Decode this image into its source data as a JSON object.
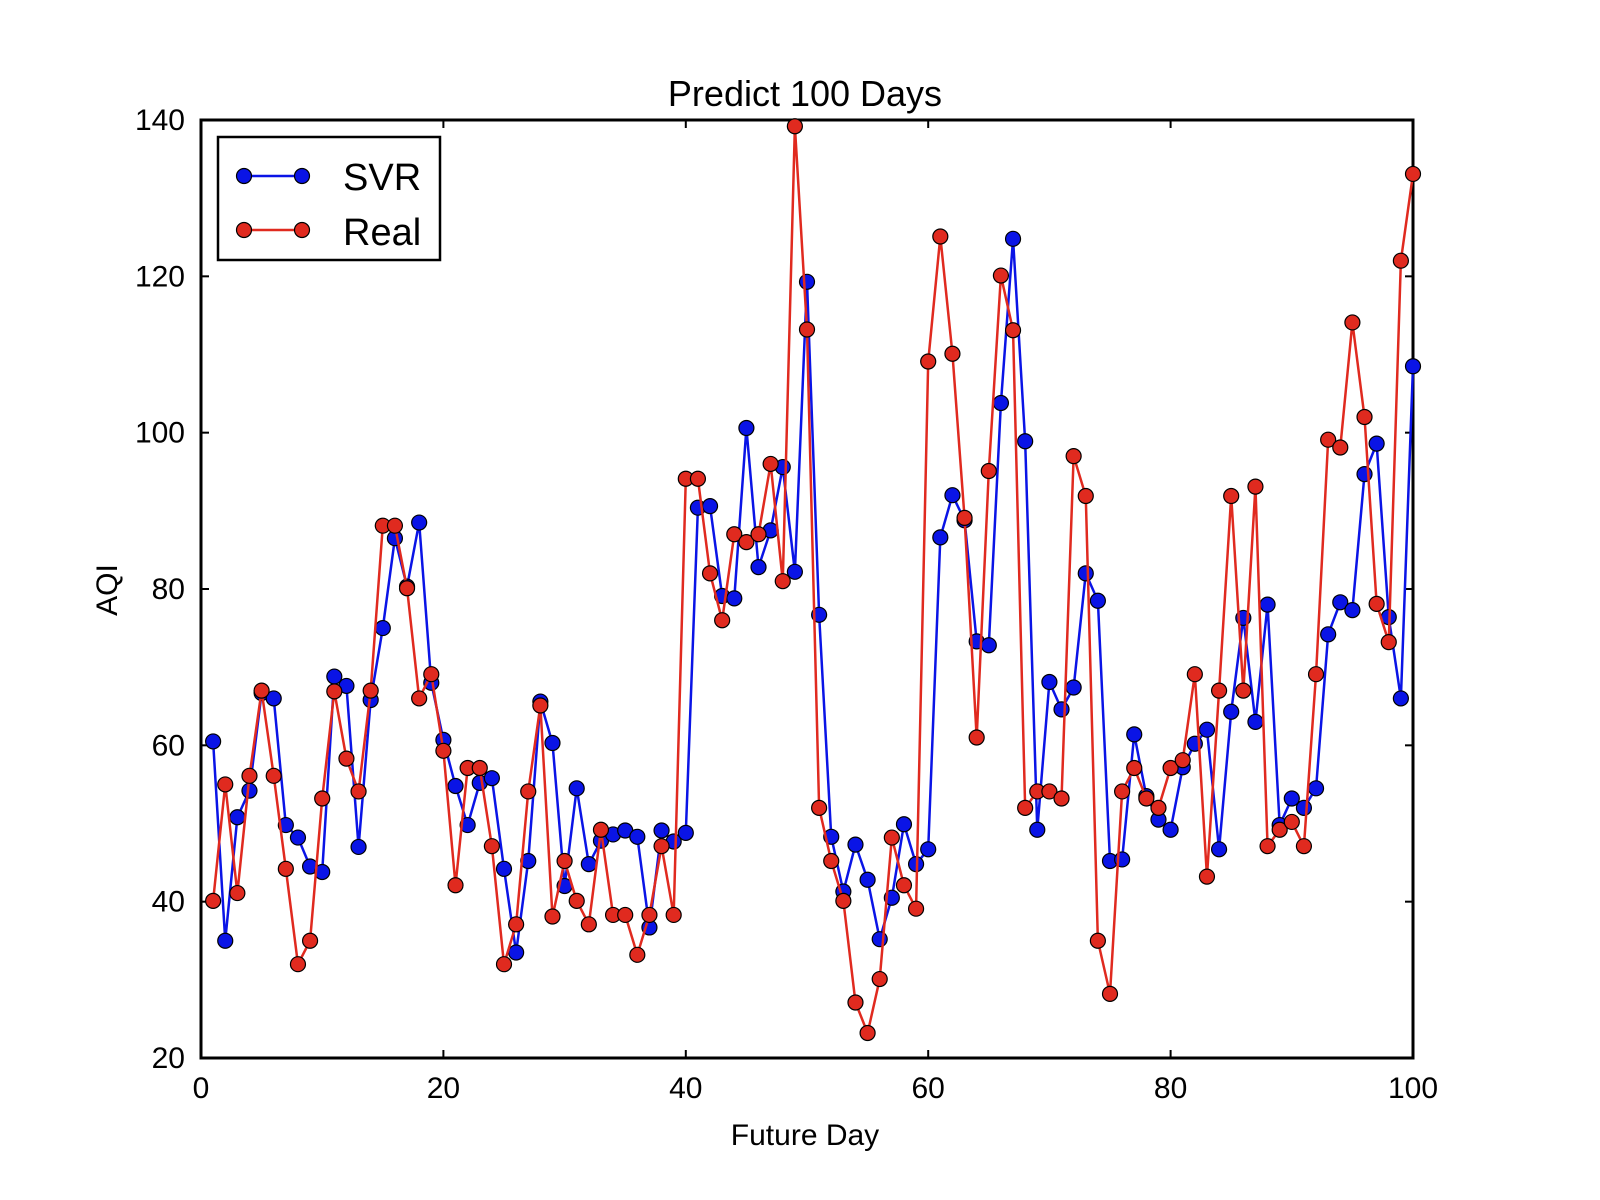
{
  "chart_data": {
    "type": "line",
    "title": "Predict 100 Days",
    "xlabel": "Future Day",
    "ylabel": "AQI",
    "xlim": [
      0,
      100
    ],
    "ylim": [
      20,
      140
    ],
    "xticks": [
      0,
      20,
      40,
      60,
      80,
      100
    ],
    "yticks": [
      20,
      40,
      60,
      80,
      100,
      120,
      140
    ],
    "grid": false,
    "legend_position": "top-left",
    "x": [
      1,
      2,
      3,
      4,
      5,
      6,
      7,
      8,
      9,
      10,
      11,
      12,
      13,
      14,
      15,
      16,
      17,
      18,
      19,
      20,
      21,
      22,
      23,
      24,
      25,
      26,
      27,
      28,
      29,
      30,
      31,
      32,
      33,
      34,
      35,
      36,
      37,
      38,
      39,
      40,
      41,
      42,
      43,
      44,
      45,
      46,
      47,
      48,
      49,
      50,
      51,
      52,
      53,
      54,
      55,
      56,
      57,
      58,
      59,
      60,
      61,
      62,
      63,
      64,
      65,
      66,
      67,
      68,
      69,
      70,
      71,
      72,
      73,
      74,
      75,
      76,
      77,
      78,
      79,
      80,
      81,
      82,
      83,
      84,
      85,
      86,
      87,
      88,
      89,
      90,
      91,
      92,
      93,
      94,
      95,
      96,
      97,
      98,
      99,
      100
    ],
    "series": [
      {
        "name": "SVR",
        "color": "#0a14e6",
        "values": [
          60.5,
          35,
          50.8,
          54.2,
          66.7,
          66,
          49.8,
          48.2,
          44.5,
          43.8,
          68.8,
          67.6,
          47,
          65.8,
          75,
          86.5,
          80.3,
          88.5,
          68,
          60.7,
          54.8,
          49.8,
          55.2,
          55.8,
          44.2,
          33.5,
          45.2,
          65.6,
          60.3,
          42,
          54.5,
          44.8,
          47.8,
          48.6,
          49.1,
          48.3,
          36.7,
          49.1,
          47.7,
          48.8,
          90.4,
          90.6,
          79.1,
          78.8,
          100.6,
          82.8,
          87.5,
          95.6,
          82.2,
          119.3,
          76.7,
          48.3,
          41.3,
          47.3,
          42.8,
          35.2,
          40.5,
          49.9,
          44.8,
          46.7,
          86.6,
          92,
          88.8,
          73.3,
          72.8,
          103.8,
          124.8,
          98.9,
          49.2,
          68.1,
          64.6,
          67.4,
          82,
          78.5,
          45.2,
          45.4,
          61.4,
          53.5,
          50.5,
          49.2,
          57.2,
          60.2,
          62,
          46.7,
          64.3,
          76.3,
          63,
          78,
          49.8,
          53.2,
          52,
          54.5,
          74.2,
          78.3,
          77.3,
          94.7,
          98.6,
          76.4,
          66,
          108.5
        ]
      },
      {
        "name": "Real",
        "color": "#e02a1f",
        "values": [
          40.1,
          55,
          41.1,
          56.1,
          67,
          56.1,
          44.2,
          32,
          35,
          53.2,
          66.9,
          58.3,
          54.1,
          67,
          88.1,
          88.1,
          80.1,
          66,
          69.1,
          59.3,
          42.1,
          57.1,
          57.1,
          47.1,
          32,
          37.1,
          54.1,
          65.1,
          38.1,
          45.2,
          40.1,
          37.1,
          49.2,
          38.3,
          38.3,
          33.2,
          38.3,
          47.1,
          38.3,
          94.1,
          94.1,
          82,
          76,
          87,
          86,
          87,
          96,
          81,
          139.2,
          113.2,
          52,
          45.2,
          40.1,
          27.1,
          23.2,
          30.1,
          48.2,
          42.1,
          39.1,
          109.1,
          125.1,
          110.1,
          89.1,
          61,
          95.1,
          120.1,
          113.1,
          52,
          54.1,
          54.1,
          53.2,
          97,
          91.9,
          35,
          28.2,
          54.1,
          57.1,
          53.2,
          52,
          57.1,
          58.1,
          69.1,
          43.2,
          67,
          91.9,
          67,
          93.1,
          47.1,
          49.2,
          50.2,
          47.1,
          69.1,
          99.1,
          98.1,
          114.1,
          102,
          78.1,
          73.2,
          122,
          133.1
        ]
      }
    ]
  }
}
